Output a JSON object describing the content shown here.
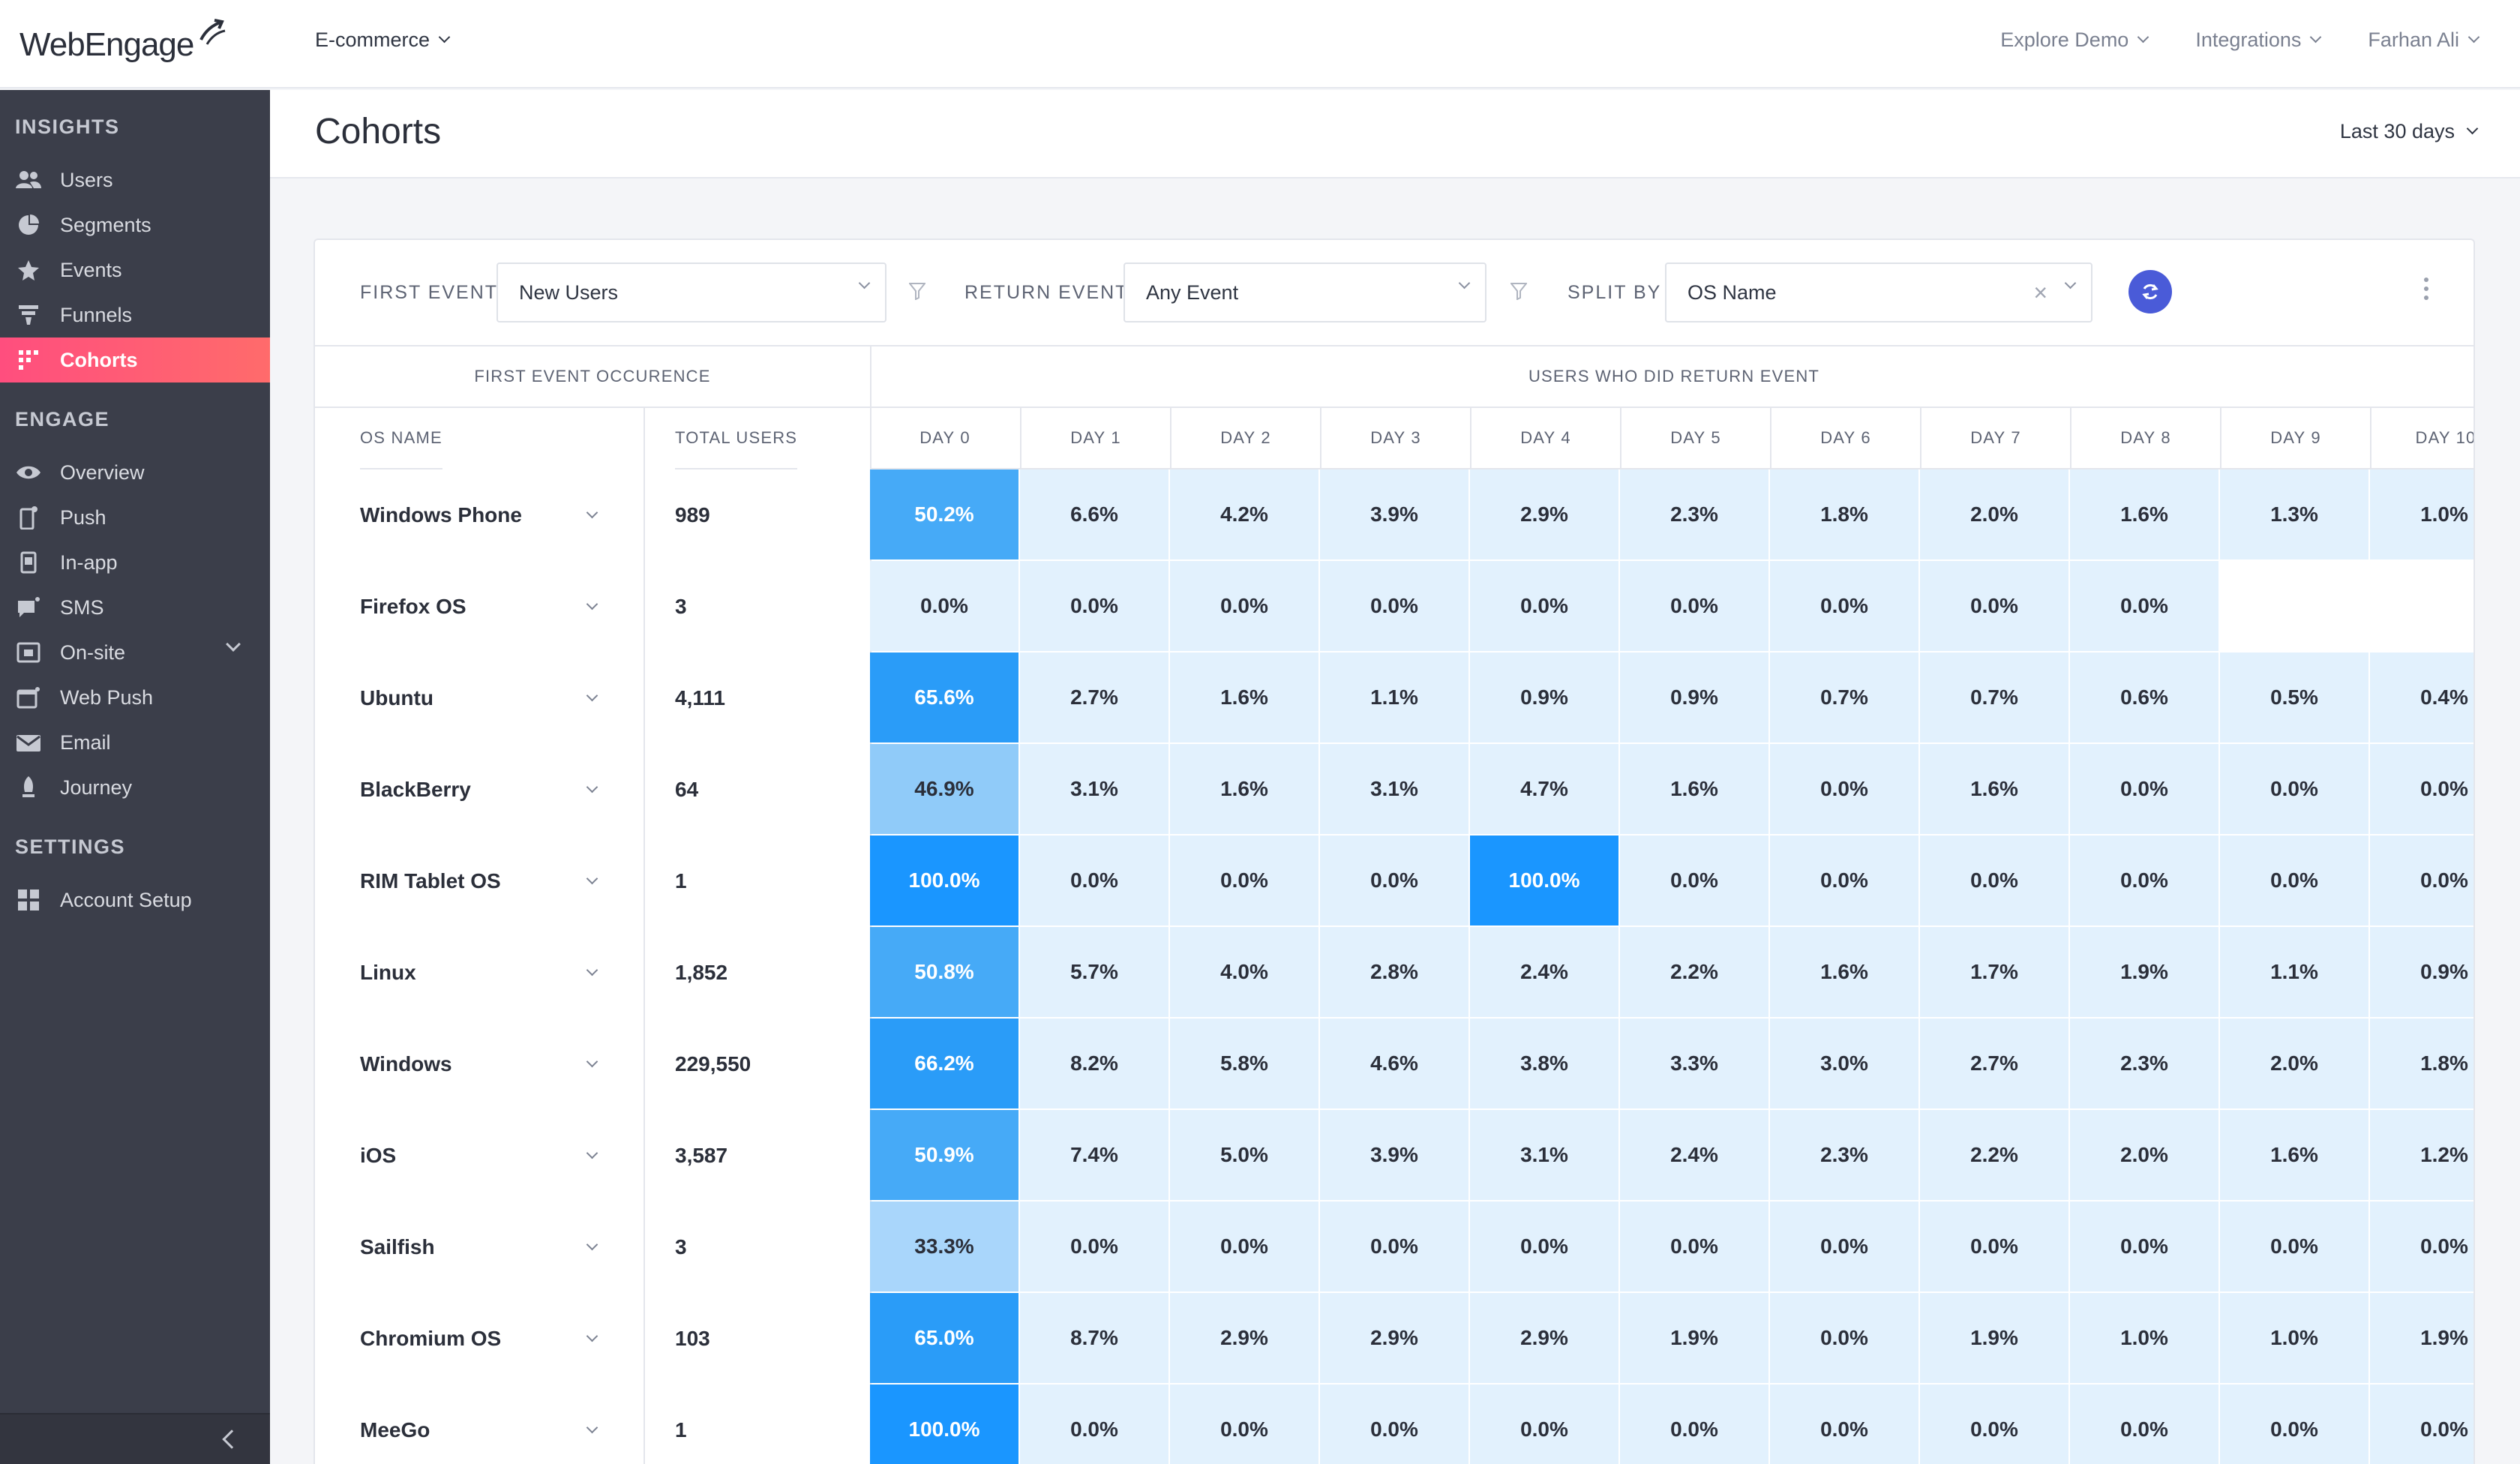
{
  "brand": {
    "name": "WebEngage"
  },
  "topbar": {
    "project": "E-commerce",
    "nav": [
      "Explore Demo",
      "Integrations",
      "Farhan Ali"
    ]
  },
  "sidebar": {
    "sections": [
      {
        "title": "INSIGHTS",
        "items": [
          {
            "label": "Users",
            "icon": "users-icon"
          },
          {
            "label": "Segments",
            "icon": "pie-icon"
          },
          {
            "label": "Events",
            "icon": "star-icon"
          },
          {
            "label": "Funnels",
            "icon": "funnel-icon"
          },
          {
            "label": "Cohorts",
            "icon": "grid-icon",
            "active": true
          }
        ]
      },
      {
        "title": "ENGAGE",
        "items": [
          {
            "label": "Overview",
            "icon": "eye-icon"
          },
          {
            "label": "Push",
            "icon": "phone-icon"
          },
          {
            "label": "In-app",
            "icon": "mobile-icon"
          },
          {
            "label": "SMS",
            "icon": "chat-icon"
          },
          {
            "label": "On-site",
            "icon": "window-icon",
            "expandable": true
          },
          {
            "label": "Web Push",
            "icon": "browser-icon"
          },
          {
            "label": "Email",
            "icon": "mail-icon"
          },
          {
            "label": "Journey",
            "icon": "rocket-icon"
          }
        ]
      },
      {
        "title": "SETTINGS",
        "items": [
          {
            "label": "Account Setup",
            "icon": "tiles-icon"
          }
        ]
      }
    ]
  },
  "header": {
    "title": "Cohorts",
    "date_range": "Last 30 days"
  },
  "filters": {
    "first_event_label": "FIRST EVENT",
    "first_event_value": "New Users",
    "return_event_label": "RETURN EVENT",
    "return_event_value": "Any Event",
    "split_by_label": "SPLIT BY",
    "split_by_value": "OS Name",
    "clear_symbol": "×"
  },
  "table": {
    "group_left": "FIRST EVENT OCCURENCE",
    "group_right": "USERS WHO DID RETURN EVENT",
    "col_name": "OS NAME",
    "col_total": "TOTAL USERS",
    "days": [
      "DAY 0",
      "DAY 1",
      "DAY 2",
      "DAY 3",
      "DAY 4",
      "DAY 5",
      "DAY 6",
      "DAY 7",
      "DAY 8",
      "DAY 9",
      "DAY 10"
    ],
    "rows": [
      {
        "name": "Windows Phone",
        "total": "989",
        "values": [
          "50.2%",
          "6.6%",
          "4.2%",
          "3.9%",
          "2.9%",
          "2.3%",
          "1.8%",
          "2.0%",
          "1.6%",
          "1.3%",
          "1.0%"
        ]
      },
      {
        "name": "Firefox OS",
        "total": "3",
        "values": [
          "0.0%",
          "0.0%",
          "0.0%",
          "0.0%",
          "0.0%",
          "0.0%",
          "0.0%",
          "0.0%",
          "0.0%",
          "",
          ""
        ]
      },
      {
        "name": "Ubuntu",
        "total": "4,111",
        "values": [
          "65.6%",
          "2.7%",
          "1.6%",
          "1.1%",
          "0.9%",
          "0.9%",
          "0.7%",
          "0.7%",
          "0.6%",
          "0.5%",
          "0.4%"
        ]
      },
      {
        "name": "BlackBerry",
        "total": "64",
        "values": [
          "46.9%",
          "3.1%",
          "1.6%",
          "3.1%",
          "4.7%",
          "1.6%",
          "0.0%",
          "1.6%",
          "0.0%",
          "0.0%",
          "0.0%"
        ]
      },
      {
        "name": "RIM Tablet OS",
        "total": "1",
        "values": [
          "100.0%",
          "0.0%",
          "0.0%",
          "0.0%",
          "100.0%",
          "0.0%",
          "0.0%",
          "0.0%",
          "0.0%",
          "0.0%",
          "0.0%"
        ]
      },
      {
        "name": "Linux",
        "total": "1,852",
        "values": [
          "50.8%",
          "5.7%",
          "4.0%",
          "2.8%",
          "2.4%",
          "2.2%",
          "1.6%",
          "1.7%",
          "1.9%",
          "1.1%",
          "0.9%"
        ]
      },
      {
        "name": "Windows",
        "total": "229,550",
        "values": [
          "66.2%",
          "8.2%",
          "5.8%",
          "4.6%",
          "3.8%",
          "3.3%",
          "3.0%",
          "2.7%",
          "2.3%",
          "2.0%",
          "1.8%"
        ]
      },
      {
        "name": "iOS",
        "total": "3,587",
        "values": [
          "50.9%",
          "7.4%",
          "5.0%",
          "3.9%",
          "3.1%",
          "2.4%",
          "2.3%",
          "2.2%",
          "2.0%",
          "1.6%",
          "1.2%"
        ]
      },
      {
        "name": "Sailfish",
        "total": "3",
        "values": [
          "33.3%",
          "0.0%",
          "0.0%",
          "0.0%",
          "0.0%",
          "0.0%",
          "0.0%",
          "0.0%",
          "0.0%",
          "0.0%",
          "0.0%"
        ]
      },
      {
        "name": "Chromium OS",
        "total": "103",
        "values": [
          "65.0%",
          "8.7%",
          "2.9%",
          "2.9%",
          "2.9%",
          "1.9%",
          "0.0%",
          "1.9%",
          "1.0%",
          "1.0%",
          "1.9%"
        ]
      },
      {
        "name": "MeeGo",
        "total": "1",
        "values": [
          "100.0%",
          "0.0%",
          "0.0%",
          "0.0%",
          "0.0%",
          "0.0%",
          "0.0%",
          "0.0%",
          "0.0%",
          "0.0%",
          "0.0%"
        ]
      }
    ]
  },
  "colors": {
    "active_nav": "#ff5577",
    "sidebar_bg": "#3b3e4a",
    "refresh_button": "#4a5bd8"
  }
}
